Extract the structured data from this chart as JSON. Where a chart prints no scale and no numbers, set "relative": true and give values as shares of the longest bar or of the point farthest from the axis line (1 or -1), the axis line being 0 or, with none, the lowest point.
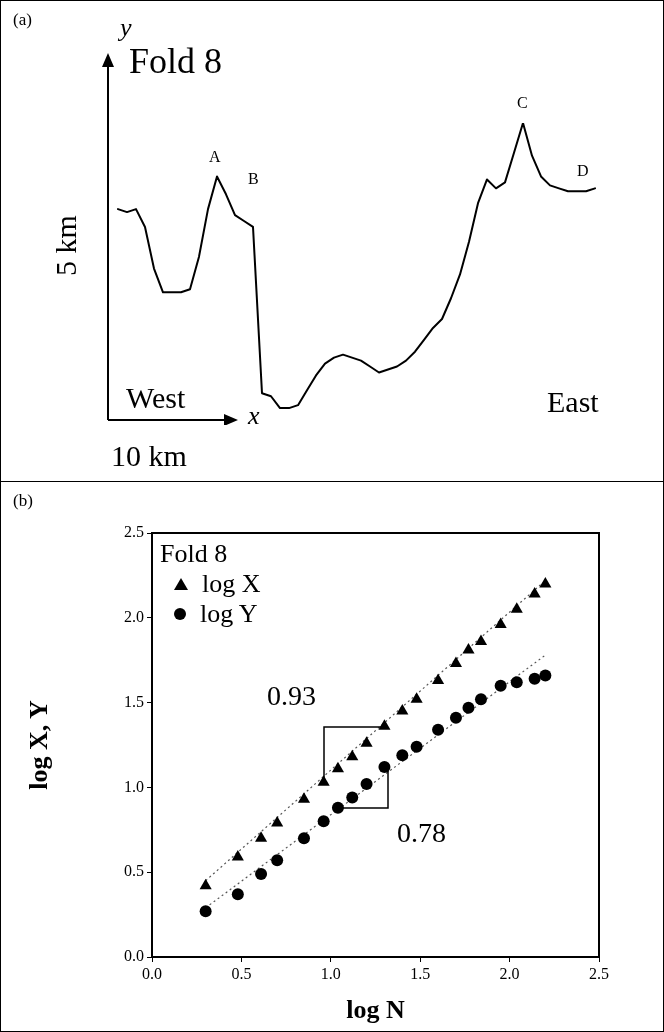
{
  "chart_data": [
    {
      "type": "line",
      "relative": true,
      "title": "Fold 8",
      "xlabel": "x",
      "ylabel": "y",
      "tick_labels": false,
      "grid": false,
      "legend": false,
      "marker": "none",
      "line_style": "solid",
      "categories": [
        null,
        null,
        null,
        null,
        null,
        null,
        null,
        null,
        null,
        null,
        null,
        null,
        null,
        null,
        null,
        null,
        null,
        null,
        null,
        null,
        null,
        null,
        null,
        null,
        null,
        null,
        null,
        null,
        null,
        null,
        null,
        null,
        null,
        null,
        null,
        null,
        null,
        null,
        null,
        null,
        null,
        null,
        null,
        null,
        null,
        null,
        null,
        null,
        null,
        null,
        null,
        null,
        null,
        null
      ],
      "series": [
        {
          "color": "#000000",
          "values": [
            0.71,
            0.7,
            0.71,
            0.65,
            0.51,
            0.43,
            0.43,
            0.43,
            0.44,
            0.55,
            0.71,
            0.82,
            0.76,
            0.69,
            0.67,
            0.65,
            0.09,
            0.08,
            0.04,
            0.04,
            0.05,
            0.1,
            0.15,
            0.19,
            0.21,
            0.22,
            0.21,
            0.2,
            0.18,
            0.16,
            0.17,
            0.18,
            0.2,
            0.23,
            0.27,
            0.31,
            0.34,
            0.41,
            0.49,
            0.6,
            0.73,
            0.81,
            0.78,
            0.8,
            0.9,
            1,
            0.89,
            0.82,
            0.79,
            0.78,
            0.77,
            0.77,
            0.77,
            0.78
          ]
        }
      ],
      "annotations": [
        "(a)",
        "A",
        "B",
        "C",
        "D",
        "West",
        "East",
        "5 km",
        "10 km"
      ]
    },
    {
      "type": "scatter",
      "xlabel": "log N",
      "ylabel": "log X, Y",
      "legend_title": "Fold 8",
      "legend": "top left",
      "grid": false,
      "xlim": [
        0,
        2.5
      ],
      "xticks": [
        {
          "value": 0,
          "label": "0.0"
        },
        0.5,
        {
          "value": 1,
          "label": "1.0"
        },
        1.5,
        {
          "value": 2,
          "label": "2.0"
        },
        2.5
      ],
      "ylim": [
        0,
        2.5
      ],
      "yticks": [
        {
          "value": 0,
          "label": "0.0"
        },
        0.5,
        {
          "value": 1,
          "label": "1.0"
        },
        1.5,
        {
          "value": 2,
          "label": "2.0"
        },
        2.5
      ],
      "series": [
        {
          "name": "log X",
          "type": "scatter",
          "marker": "triangle",
          "color": "#000000",
          "x": [
            0.3,
            0.48,
            0.61,
            0.7,
            0.85,
            0.96,
            1.04,
            1.12,
            1.2,
            1.3,
            1.4,
            1.48,
            1.6,
            1.7,
            1.77,
            1.84,
            1.95,
            2.04,
            2.14,
            2.2
          ],
          "values": [
            0.42,
            0.59,
            0.7,
            0.79,
            0.93,
            1.03,
            1.11,
            1.18,
            1.26,
            1.36,
            1.45,
            1.52,
            1.63,
            1.73,
            1.81,
            1.86,
            1.96,
            2.05,
            2.14,
            2.2
          ]
        },
        {
          "name": "log Y",
          "type": "scatter",
          "marker": "circle",
          "color": "#000000",
          "x": [
            0.3,
            0.48,
            0.61,
            0.7,
            0.85,
            0.96,
            1.04,
            1.12,
            1.2,
            1.3,
            1.4,
            1.48,
            1.6,
            1.7,
            1.77,
            1.84,
            1.95,
            2.04,
            2.14,
            2.2
          ],
          "values": [
            0.27,
            0.37,
            0.49,
            0.57,
            0.7,
            0.8,
            0.88,
            0.94,
            1.02,
            1.12,
            1.19,
            1.24,
            1.34,
            1.41,
            1.47,
            1.52,
            1.6,
            1.62,
            1.64,
            1.66
          ]
        },
        {
          "type": "line",
          "marker": "none",
          "line_style": "dotted",
          "color": "#555555",
          "x": [
            0.3,
            2.2
          ],
          "values": [
            0.45,
            2.22
          ]
        },
        {
          "type": "line",
          "marker": "none",
          "line_style": "dotted",
          "color": "#555555",
          "x": [
            0.3,
            2.2
          ],
          "values": [
            0.29,
            1.78
          ]
        }
      ],
      "annotations": [
        "(b)",
        "0.93",
        "0.78"
      ]
    }
  ]
}
